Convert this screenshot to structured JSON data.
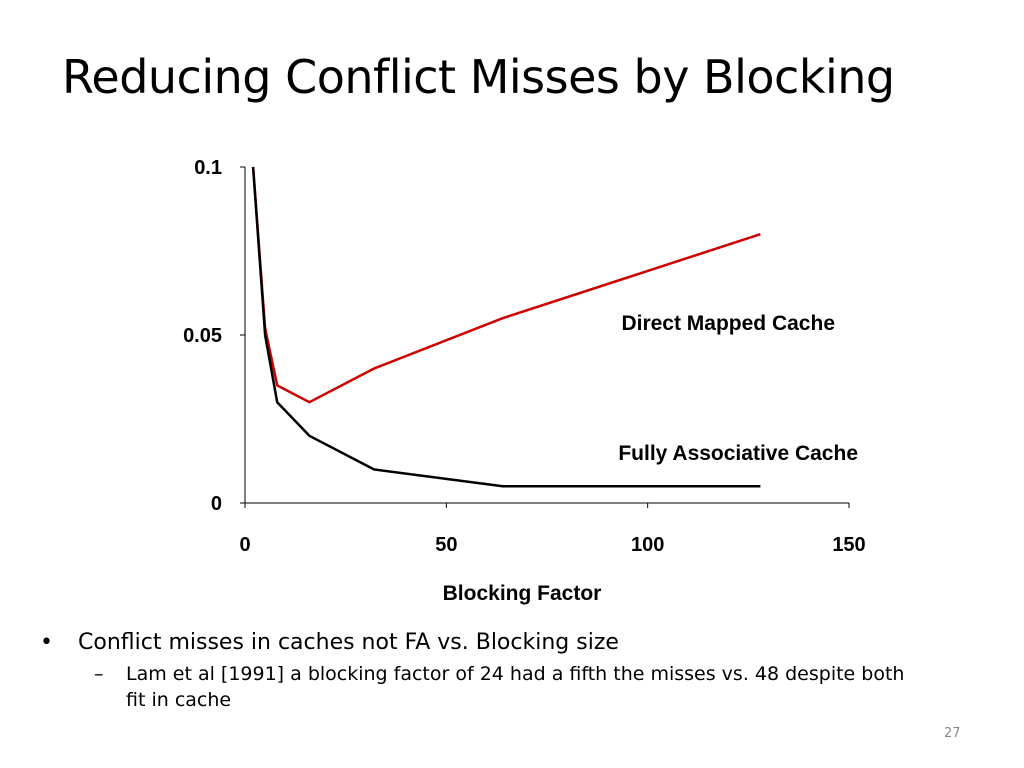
{
  "slide": {
    "title": "Reducing Conflict Misses by Blocking",
    "bullet1": "Conflict misses in caches not FA vs. Blocking size",
    "sub_bullet1": "Lam et al [1991] a blocking factor of 24 had a fifth the  misses vs. 48 despite both fit in cache",
    "page_number": "27",
    "bullet_glyph": "•",
    "sub_bullet_glyph": "–"
  },
  "chart_data": {
    "type": "line",
    "title": "",
    "xlabel": "Blocking Factor",
    "ylabel": "",
    "xlim": [
      0,
      150
    ],
    "ylim": [
      0,
      0.1
    ],
    "x_ticks": [
      "0",
      "50",
      "100",
      "150"
    ],
    "y_ticks": [
      "0",
      "0.05",
      "0.1"
    ],
    "grid": false,
    "legend": "inline labels",
    "series": [
      {
        "name": "Direct Mapped Cache",
        "color": "#cc0000",
        "points": [
          [
            2,
            0.1
          ],
          [
            5,
            0.052
          ],
          [
            8,
            0.035
          ],
          [
            16,
            0.03
          ],
          [
            32,
            0.04
          ],
          [
            64,
            0.055
          ],
          [
            128,
            0.08
          ]
        ]
      },
      {
        "name": "Fully Associative Cache",
        "color": "#000000",
        "points": [
          [
            2,
            0.1
          ],
          [
            5,
            0.05
          ],
          [
            8,
            0.03
          ],
          [
            16,
            0.02
          ],
          [
            32,
            0.01
          ],
          [
            64,
            0.005
          ],
          [
            128,
            0.005
          ]
        ]
      }
    ]
  }
}
